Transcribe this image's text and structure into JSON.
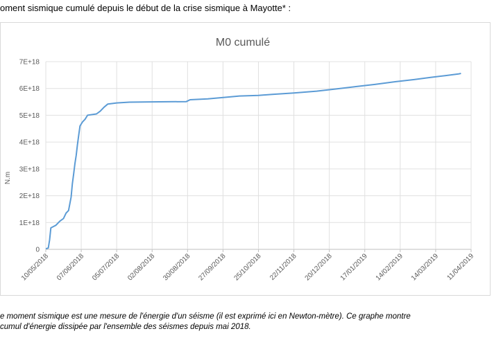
{
  "heading": "oment sismique cumulé depuis le début de la crise sismique à Mayotte* :",
  "caption": {
    "line1": "e moment sismique est une mesure de l'énergie d'un séisme (il est exprimé ici en Newton-mètre). Ce graphe montre",
    "line2": "cumul d'énergie dissipée par l'ensemble des séismes depuis mai 2018."
  },
  "chart_data": {
    "type": "line",
    "title": "M0 cumulé",
    "xlabel": "",
    "ylabel": "N.m",
    "ylim": [
      0,
      7e+18
    ],
    "xlim": [
      "2018-05-10",
      "2019-04-11"
    ],
    "grid": true,
    "legend": "none",
    "line_color": "#5b9bd5",
    "y_ticks": [
      {
        "value": 0,
        "label": "0"
      },
      {
        "value": 1e+18,
        "label": "1E+18"
      },
      {
        "value": 2e+18,
        "label": "2E+18"
      },
      {
        "value": 3e+18,
        "label": "3E+18"
      },
      {
        "value": 4e+18,
        "label": "4E+18"
      },
      {
        "value": 5e+18,
        "label": "5E+18"
      },
      {
        "value": 6e+18,
        "label": "6E+18"
      },
      {
        "value": 7e+18,
        "label": "7E+18"
      }
    ],
    "x_ticks": [
      {
        "date": "2018-05-10",
        "label": "10/05/2018"
      },
      {
        "date": "2018-06-07",
        "label": "07/06/2018"
      },
      {
        "date": "2018-07-05",
        "label": "05/07/2018"
      },
      {
        "date": "2018-08-02",
        "label": "02/08/2018"
      },
      {
        "date": "2018-08-30",
        "label": "30/08/2018"
      },
      {
        "date": "2018-09-27",
        "label": "27/09/2018"
      },
      {
        "date": "2018-10-25",
        "label": "25/10/2018"
      },
      {
        "date": "2018-11-22",
        "label": "22/11/2018"
      },
      {
        "date": "2018-12-20",
        "label": "20/12/2018"
      },
      {
        "date": "2019-01-17",
        "label": "17/01/2019"
      },
      {
        "date": "2019-02-14",
        "label": "14/02/2019"
      },
      {
        "date": "2019-03-14",
        "label": "14/03/2019"
      },
      {
        "date": "2019-04-11",
        "label": "11/04/2019"
      }
    ],
    "series": [
      {
        "points": [
          {
            "x": "2018-05-10",
            "y": 2e+16
          },
          {
            "x": "2018-05-12",
            "y": 5e+16
          },
          {
            "x": "2018-05-13",
            "y": 3.5e+17
          },
          {
            "x": "2018-05-14",
            "y": 8e+17
          },
          {
            "x": "2018-05-16",
            "y": 8.5e+17
          },
          {
            "x": "2018-05-18",
            "y": 9e+17
          },
          {
            "x": "2018-05-21",
            "y": 1.05e+18
          },
          {
            "x": "2018-05-24",
            "y": 1.15e+18
          },
          {
            "x": "2018-05-26",
            "y": 1.35e+18
          },
          {
            "x": "2018-05-28",
            "y": 1.45e+18
          },
          {
            "x": "2018-05-30",
            "y": 1.95e+18
          },
          {
            "x": "2018-05-31",
            "y": 2.45e+18
          },
          {
            "x": "2018-06-01",
            "y": 2.8e+18
          },
          {
            "x": "2018-06-02",
            "y": 3.2e+18
          },
          {
            "x": "2018-06-03",
            "y": 3.5e+18
          },
          {
            "x": "2018-06-04",
            "y": 3.9e+18
          },
          {
            "x": "2018-06-05",
            "y": 4.25e+18
          },
          {
            "x": "2018-06-06",
            "y": 4.6e+18
          },
          {
            "x": "2018-06-08",
            "y": 4.75e+18
          },
          {
            "x": "2018-06-10",
            "y": 4.85e+18
          },
          {
            "x": "2018-06-12",
            "y": 5e+18
          },
          {
            "x": "2018-06-19",
            "y": 5.05e+18
          },
          {
            "x": "2018-06-22",
            "y": 5.15e+18
          },
          {
            "x": "2018-06-25",
            "y": 5.3e+18
          },
          {
            "x": "2018-06-28",
            "y": 5.42e+18
          },
          {
            "x": "2018-07-05",
            "y": 5.46e+18
          },
          {
            "x": "2018-07-15",
            "y": 5.49e+18
          },
          {
            "x": "2018-08-01",
            "y": 5.5e+18
          },
          {
            "x": "2018-08-29",
            "y": 5.51e+18
          },
          {
            "x": "2018-09-01",
            "y": 5.58e+18
          },
          {
            "x": "2018-09-15",
            "y": 5.61e+18
          },
          {
            "x": "2018-10-01",
            "y": 5.68e+18
          },
          {
            "x": "2018-10-10",
            "y": 5.72e+18
          },
          {
            "x": "2018-10-25",
            "y": 5.74e+18
          },
          {
            "x": "2018-11-05",
            "y": 5.78e+18
          },
          {
            "x": "2018-11-22",
            "y": 5.83e+18
          },
          {
            "x": "2018-12-10",
            "y": 5.9e+18
          },
          {
            "x": "2018-12-25",
            "y": 5.98e+18
          },
          {
            "x": "2019-01-10",
            "y": 6.07e+18
          },
          {
            "x": "2019-01-25",
            "y": 6.15e+18
          },
          {
            "x": "2019-02-10",
            "y": 6.25e+18
          },
          {
            "x": "2019-02-25",
            "y": 6.33e+18
          },
          {
            "x": "2019-03-10",
            "y": 6.41e+18
          },
          {
            "x": "2019-03-22",
            "y": 6.48e+18
          },
          {
            "x": "2019-04-01",
            "y": 6.54e+18
          },
          {
            "x": "2019-04-03",
            "y": 6.56e+18
          }
        ]
      }
    ]
  }
}
